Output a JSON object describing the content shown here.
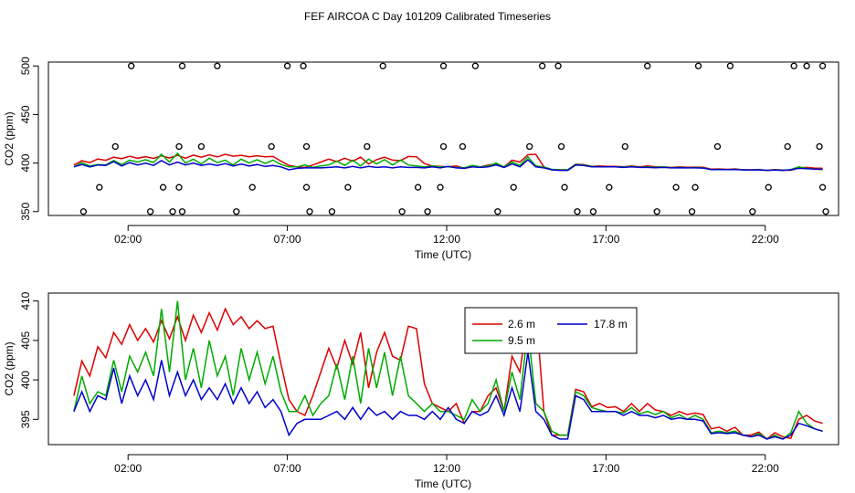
{
  "title": "FEF AIRCOA C  Day 101209  Calibrated Timeseries",
  "chart_data": [
    {
      "type": "scatter+line",
      "title": "FEF AIRCOA C  Day 101209  Calibrated Timeseries",
      "xlabel": "Time (UTC)",
      "ylabel": "CO2 (ppm)",
      "xlim": [
        -0.5,
        24.3
      ],
      "ylim": [
        346,
        504
      ],
      "xticks": [
        2,
        7,
        12,
        17,
        22
      ],
      "xtick_labels": [
        "02:00",
        "07:00",
        "12:00",
        "17:00",
        "22:00"
      ],
      "yticks": [
        350,
        400,
        450,
        500
      ],
      "ytick_labels": [
        "350",
        "400",
        "450",
        "500"
      ],
      "flag_points": {
        "name": "flagged samples",
        "x": [
          0.6,
          1.1,
          1.6,
          2.1,
          2.7,
          3.1,
          3.4,
          3.6,
          3.6,
          3.7,
          3.7,
          4.3,
          4.8,
          5.4,
          5.9,
          6.5,
          7.0,
          7.5,
          7.6,
          7.6,
          7.7,
          8.4,
          8.9,
          9.5,
          10.0,
          10.6,
          11.1,
          11.4,
          11.8,
          11.9,
          11.9,
          12.5,
          12.9,
          13.6,
          14.1,
          14.6,
          15.0,
          15.5,
          15.6,
          15.7,
          16.1,
          16.6,
          17.1,
          17.6,
          18.3,
          18.6,
          19.2,
          19.7,
          19.8,
          19.9,
          20.5,
          20.9,
          21.6,
          22.1,
          22.7,
          22.9,
          23.3,
          23.7,
          23.8,
          23.8,
          23.9
        ],
        "y": [
          350,
          375,
          417,
          500,
          350,
          375,
          350,
          375,
          417,
          500,
          350,
          417,
          500,
          350,
          375,
          417,
          500,
          500,
          417,
          375,
          350,
          350,
          375,
          417,
          500,
          350,
          375,
          350,
          375,
          417,
          500,
          417,
          500,
          350,
          375,
          417,
          500,
          500,
          417,
          375,
          350,
          350,
          375,
          417,
          500,
          350,
          375,
          350,
          375,
          500,
          417,
          500,
          350,
          375,
          417,
          500,
          500,
          417,
          375,
          500,
          350
        ]
      }
    },
    {
      "type": "line",
      "xlabel": "Time (UTC)",
      "ylabel": "CO2 (ppm)",
      "xlim": [
        -0.5,
        24.3
      ],
      "ylim": [
        391.8,
        411
      ],
      "xticks": [
        2,
        7,
        12,
        17,
        22
      ],
      "xtick_labels": [
        "02:00",
        "07:00",
        "12:00",
        "17:00",
        "22:00"
      ],
      "yticks": [
        395,
        400,
        405,
        410
      ],
      "ytick_labels": [
        "395",
        "400",
        "405",
        "410"
      ],
      "legend_position": "top-center",
      "series": [
        {
          "name": "2.6 m",
          "color": "#dd0000",
          "x": [
            0.3,
            0.55,
            0.8,
            1.05,
            1.3,
            1.55,
            1.8,
            2.05,
            2.3,
            2.55,
            2.8,
            3.05,
            3.3,
            3.55,
            3.8,
            4.05,
            4.3,
            4.55,
            4.8,
            5.05,
            5.3,
            5.55,
            5.8,
            6.05,
            6.3,
            6.55,
            6.8,
            7.05,
            7.3,
            7.55,
            7.8,
            8.05,
            8.3,
            8.55,
            8.8,
            9.05,
            9.3,
            9.55,
            9.8,
            10.05,
            10.3,
            10.55,
            10.8,
            11.05,
            11.3,
            11.55,
            11.8,
            12.05,
            12.3,
            12.55,
            12.8,
            13.05,
            13.3,
            13.55,
            13.8,
            14.05,
            14.3,
            14.55,
            14.8,
            15.05,
            15.3,
            15.55,
            15.8,
            16.05,
            16.3,
            16.55,
            16.8,
            17.05,
            17.3,
            17.55,
            17.8,
            18.05,
            18.3,
            18.55,
            18.8,
            19.05,
            19.3,
            19.55,
            19.8,
            20.05,
            20.3,
            20.55,
            20.8,
            21.05,
            21.3,
            21.55,
            21.8,
            22.05,
            22.3,
            22.55,
            22.8,
            23.05,
            23.3,
            23.55,
            23.8
          ],
          "values": [
            398.0,
            402.4,
            400.5,
            404.2,
            402.8,
            406.0,
            404.5,
            407.0,
            405.0,
            406.5,
            404.8,
            407.5,
            405.2,
            408.0,
            405.0,
            408.2,
            406.0,
            408.5,
            406.3,
            409.0,
            407.0,
            408.0,
            406.5,
            407.5,
            406.5,
            406.8,
            402.0,
            397.5,
            396.0,
            395.5,
            398.0,
            401.0,
            404.0,
            401.5,
            405.0,
            402.0,
            406.0,
            399.0,
            403.5,
            406.0,
            403.0,
            402.5,
            406.8,
            406.5,
            399.5,
            397.0,
            396.5,
            396.0,
            397.0,
            394.5,
            396.0,
            396.0,
            398.0,
            399.0,
            396.0,
            403.0,
            401.0,
            408.5,
            409.0,
            396.0,
            393.0,
            393.0,
            393.0,
            398.8,
            398.5,
            396.6,
            397.0,
            396.5,
            396.6,
            396.0,
            397.0,
            396.0,
            397.0,
            396.2,
            396.0,
            395.5,
            396.0,
            395.6,
            395.8,
            395.6,
            393.8,
            394.0,
            393.5,
            394.0,
            393.0,
            393.0,
            393.4,
            392.5,
            393.3,
            392.8,
            392.6,
            395.0,
            395.5,
            394.8,
            394.5
          ]
        },
        {
          "name": "9.5 m",
          "color": "#00aa00",
          "x": [
            0.3,
            0.55,
            0.8,
            1.05,
            1.3,
            1.55,
            1.8,
            2.05,
            2.3,
            2.55,
            2.8,
            3.05,
            3.3,
            3.55,
            3.8,
            4.05,
            4.3,
            4.55,
            4.8,
            5.05,
            5.3,
            5.55,
            5.8,
            6.05,
            6.3,
            6.55,
            6.8,
            7.05,
            7.3,
            7.55,
            7.8,
            8.05,
            8.3,
            8.55,
            8.8,
            9.05,
            9.3,
            9.55,
            9.8,
            10.05,
            10.3,
            10.55,
            10.8,
            11.05,
            11.3,
            11.55,
            11.8,
            12.05,
            12.3,
            12.55,
            12.8,
            13.05,
            13.3,
            13.55,
            13.8,
            14.05,
            14.3,
            14.55,
            14.8,
            15.05,
            15.3,
            15.55,
            15.8,
            16.05,
            16.3,
            16.55,
            16.8,
            17.05,
            17.3,
            17.55,
            17.8,
            18.05,
            18.3,
            18.55,
            18.8,
            19.05,
            19.3,
            19.55,
            19.8,
            20.05,
            20.3,
            20.55,
            20.8,
            21.05,
            21.3,
            21.55,
            21.8,
            22.05,
            22.3,
            22.55,
            22.8,
            23.05,
            23.3,
            23.55,
            23.8
          ],
          "values": [
            396.0,
            400.5,
            397.0,
            398.5,
            398.0,
            402.5,
            398.5,
            403.0,
            401.0,
            403.5,
            400.5,
            409.0,
            401.0,
            410.0,
            400.0,
            404.0,
            399.0,
            405.0,
            400.5,
            403.0,
            398.0,
            404.0,
            400.0,
            403.5,
            399.5,
            403.0,
            398.5,
            396.0,
            396.0,
            398.0,
            395.5,
            397.0,
            398.0,
            402.0,
            397.5,
            403.0,
            397.0,
            404.0,
            399.0,
            403.5,
            398.0,
            403.0,
            398.0,
            397.0,
            396.0,
            397.0,
            396.0,
            396.0,
            395.5,
            395.0,
            397.5,
            396.0,
            397.0,
            400.0,
            396.0,
            401.0,
            397.5,
            406.5,
            397.0,
            396.0,
            393.5,
            393.0,
            393.0,
            398.5,
            398.0,
            396.5,
            396.2,
            396.0,
            396.0,
            395.8,
            396.5,
            395.7,
            396.0,
            395.6,
            396.0,
            395.2,
            395.6,
            395.0,
            395.5,
            395.0,
            393.3,
            393.5,
            393.3,
            393.5,
            393.0,
            392.8,
            393.2,
            392.5,
            393.0,
            392.5,
            393.3,
            396.0,
            394.5,
            393.8,
            393.5
          ]
        },
        {
          "name": "17.8 m",
          "color": "#0000cc",
          "x": [
            0.3,
            0.55,
            0.8,
            1.05,
            1.3,
            1.55,
            1.8,
            2.05,
            2.3,
            2.55,
            2.8,
            3.05,
            3.3,
            3.55,
            3.8,
            4.05,
            4.3,
            4.55,
            4.8,
            5.05,
            5.3,
            5.55,
            5.8,
            6.05,
            6.3,
            6.55,
            6.8,
            7.05,
            7.3,
            7.55,
            7.8,
            8.05,
            8.3,
            8.55,
            8.8,
            9.05,
            9.3,
            9.55,
            9.8,
            10.05,
            10.3,
            10.55,
            10.8,
            11.05,
            11.3,
            11.55,
            11.8,
            12.05,
            12.3,
            12.55,
            12.8,
            13.05,
            13.3,
            13.55,
            13.8,
            14.05,
            14.3,
            14.55,
            14.8,
            15.05,
            15.3,
            15.55,
            15.8,
            16.05,
            16.3,
            16.55,
            16.8,
            17.05,
            17.3,
            17.55,
            17.8,
            18.05,
            18.3,
            18.55,
            18.8,
            19.05,
            19.3,
            19.55,
            19.8,
            20.05,
            20.3,
            20.55,
            20.8,
            21.05,
            21.3,
            21.55,
            21.8,
            22.05,
            22.3,
            22.55,
            22.8,
            23.05,
            23.3,
            23.55,
            23.8
          ],
          "values": [
            396.0,
            398.5,
            396.0,
            398.0,
            397.5,
            401.5,
            397.0,
            400.5,
            398.0,
            400.0,
            397.5,
            402.5,
            398.0,
            401.0,
            398.0,
            400.0,
            397.5,
            399.0,
            397.5,
            399.5,
            397.0,
            399.0,
            397.0,
            398.5,
            396.5,
            397.5,
            396.0,
            393.0,
            394.5,
            395.0,
            395.0,
            395.0,
            395.5,
            396.0,
            395.0,
            396.5,
            395.0,
            396.5,
            395.5,
            396.0,
            395.0,
            396.0,
            395.5,
            395.5,
            395.0,
            396.0,
            395.0,
            396.5,
            395.0,
            394.5,
            396.0,
            395.5,
            396.0,
            398.0,
            395.5,
            399.0,
            396.0,
            403.5,
            396.0,
            395.0,
            393.0,
            392.5,
            392.5,
            398.0,
            397.5,
            396.0,
            396.0,
            396.0,
            396.0,
            395.5,
            396.0,
            395.5,
            395.5,
            395.2,
            395.5,
            395.0,
            395.2,
            395.0,
            395.0,
            394.8,
            393.2,
            393.3,
            393.2,
            393.3,
            393.0,
            392.8,
            393.0,
            392.5,
            392.8,
            392.5,
            393.0,
            394.5,
            394.2,
            393.8,
            393.5
          ]
        }
      ]
    }
  ]
}
